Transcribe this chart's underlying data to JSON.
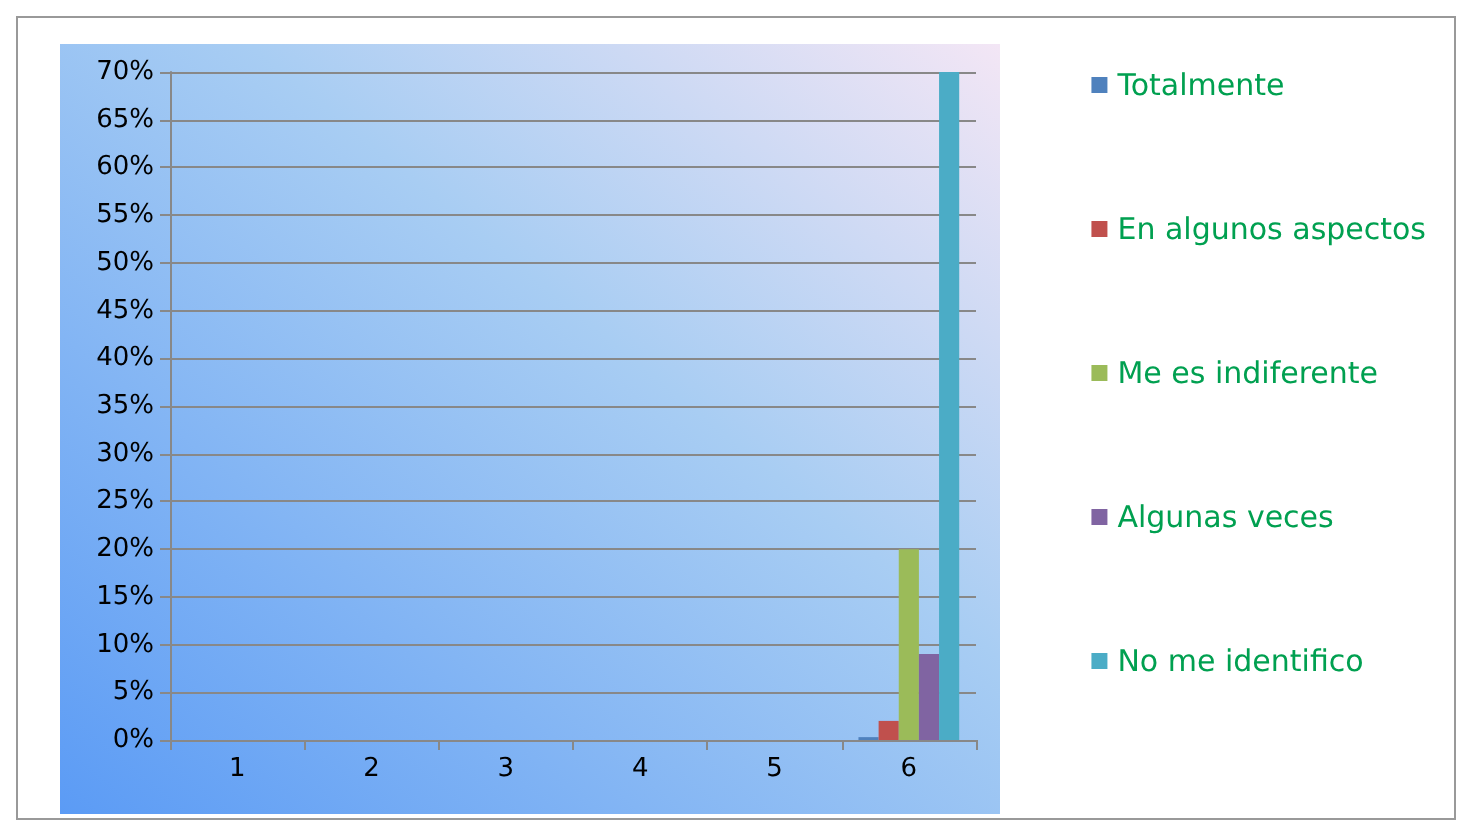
{
  "chart_data": {
    "type": "bar",
    "categories": [
      "1",
      "2",
      "3",
      "4",
      "5",
      "6"
    ],
    "series": [
      {
        "name": "Totalmente",
        "color": "#4f81bd",
        "values": [
          0,
          0,
          0,
          0,
          0,
          0.3
        ]
      },
      {
        "name": "En algunos aspectos",
        "color": "#c0504d",
        "values": [
          0,
          0,
          0,
          0,
          0,
          2
        ]
      },
      {
        "name": "Me es indiferente",
        "color": "#9bbb59",
        "values": [
          0,
          0,
          0,
          0,
          0,
          20
        ]
      },
      {
        "name": "Algunas veces",
        "color": "#8064a2",
        "values": [
          0,
          0,
          0,
          0,
          0,
          9
        ]
      },
      {
        "name": "No me identifico",
        "color": "#4bacc6",
        "values": [
          0,
          0,
          0,
          0,
          0,
          70
        ]
      }
    ],
    "ylim": [
      0,
      70
    ],
    "yticks": [
      {
        "value": 0,
        "label": "0%"
      },
      {
        "value": 5,
        "label": "5%"
      },
      {
        "value": 10,
        "label": "10%"
      },
      {
        "value": 15,
        "label": "15%"
      },
      {
        "value": 20,
        "label": "20%"
      },
      {
        "value": 25,
        "label": "25%"
      },
      {
        "value": 30,
        "label": "30%"
      },
      {
        "value": 35,
        "label": "35%"
      },
      {
        "value": 40,
        "label": "40%"
      },
      {
        "value": 45,
        "label": "45%"
      },
      {
        "value": 50,
        "label": "50%"
      },
      {
        "value": 55,
        "label": "55%"
      },
      {
        "value": 60,
        "label": "60%"
      },
      {
        "value": 65,
        "label": "65%"
      },
      {
        "value": 70,
        "label": "70%"
      }
    ],
    "grid": "y",
    "legend": "right"
  }
}
